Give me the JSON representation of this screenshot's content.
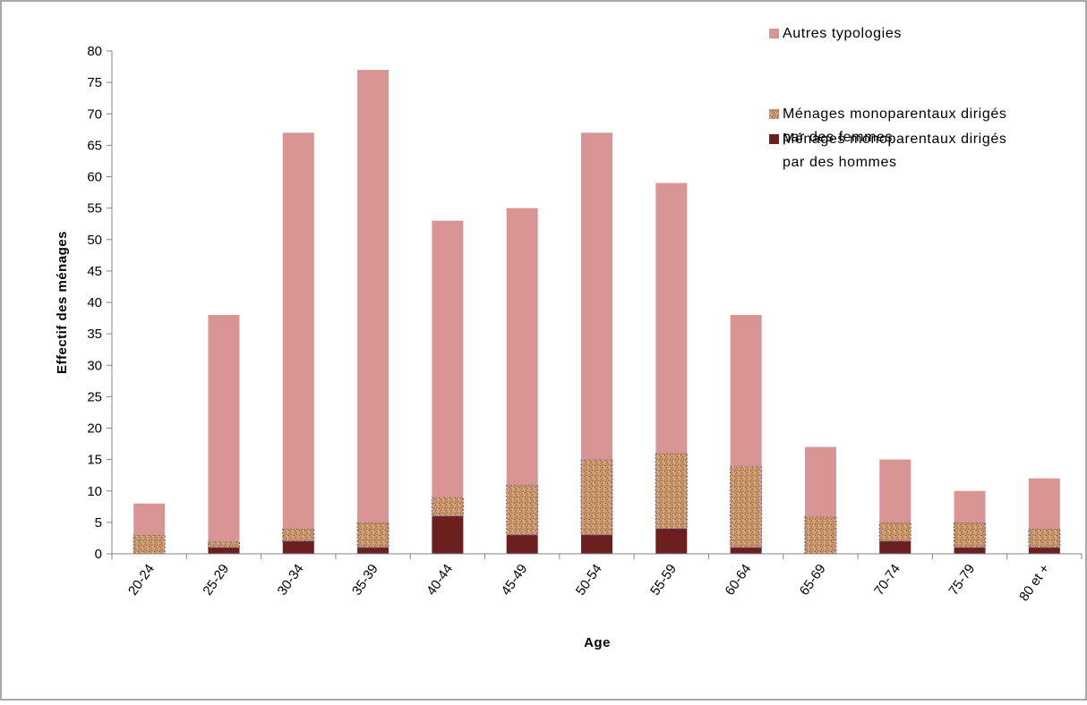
{
  "chart_data": {
    "type": "bar",
    "stacked": true,
    "title": "",
    "xlabel": "Age",
    "ylabel": "Effectif des ménages",
    "ylim": [
      0,
      80
    ],
    "yticks": [
      0,
      5,
      10,
      15,
      20,
      25,
      30,
      35,
      40,
      45,
      50,
      55,
      60,
      65,
      70,
      75,
      80
    ],
    "grid": false,
    "legend_position": "top-right",
    "categories": [
      "20-24",
      "25-29",
      "30-34",
      "35-39",
      "40-44",
      "45-49",
      "50-54",
      "55-59",
      "60-64",
      "65-69",
      "70-74",
      "75-79",
      "80 et +"
    ],
    "series": [
      {
        "name": "Ménages monoparentaux dirigés par des hommes",
        "legend_lines": [
          "Ménages monoparentaux dirigés",
          "par des hommes"
        ],
        "color": "#6b1f1f",
        "values": [
          0,
          1,
          2,
          1,
          6,
          3,
          3,
          4,
          1,
          0,
          2,
          1,
          1
        ]
      },
      {
        "name": "Ménages monoparentaux dirigés par des femmes",
        "legend_lines": [
          "Ménages monoparentaux dirigés",
          "par des femmes"
        ],
        "color": "#c9956a",
        "pattern": "speckled",
        "values": [
          3,
          1,
          2,
          4,
          3,
          8,
          12,
          12,
          13,
          6,
          3,
          4,
          3
        ]
      },
      {
        "name": "Autres typologies",
        "legend_lines": [
          "Autres typologies"
        ],
        "color": "#d99594",
        "values": [
          5,
          36,
          63,
          72,
          44,
          44,
          52,
          43,
          24,
          11,
          10,
          5,
          8
        ]
      }
    ]
  }
}
